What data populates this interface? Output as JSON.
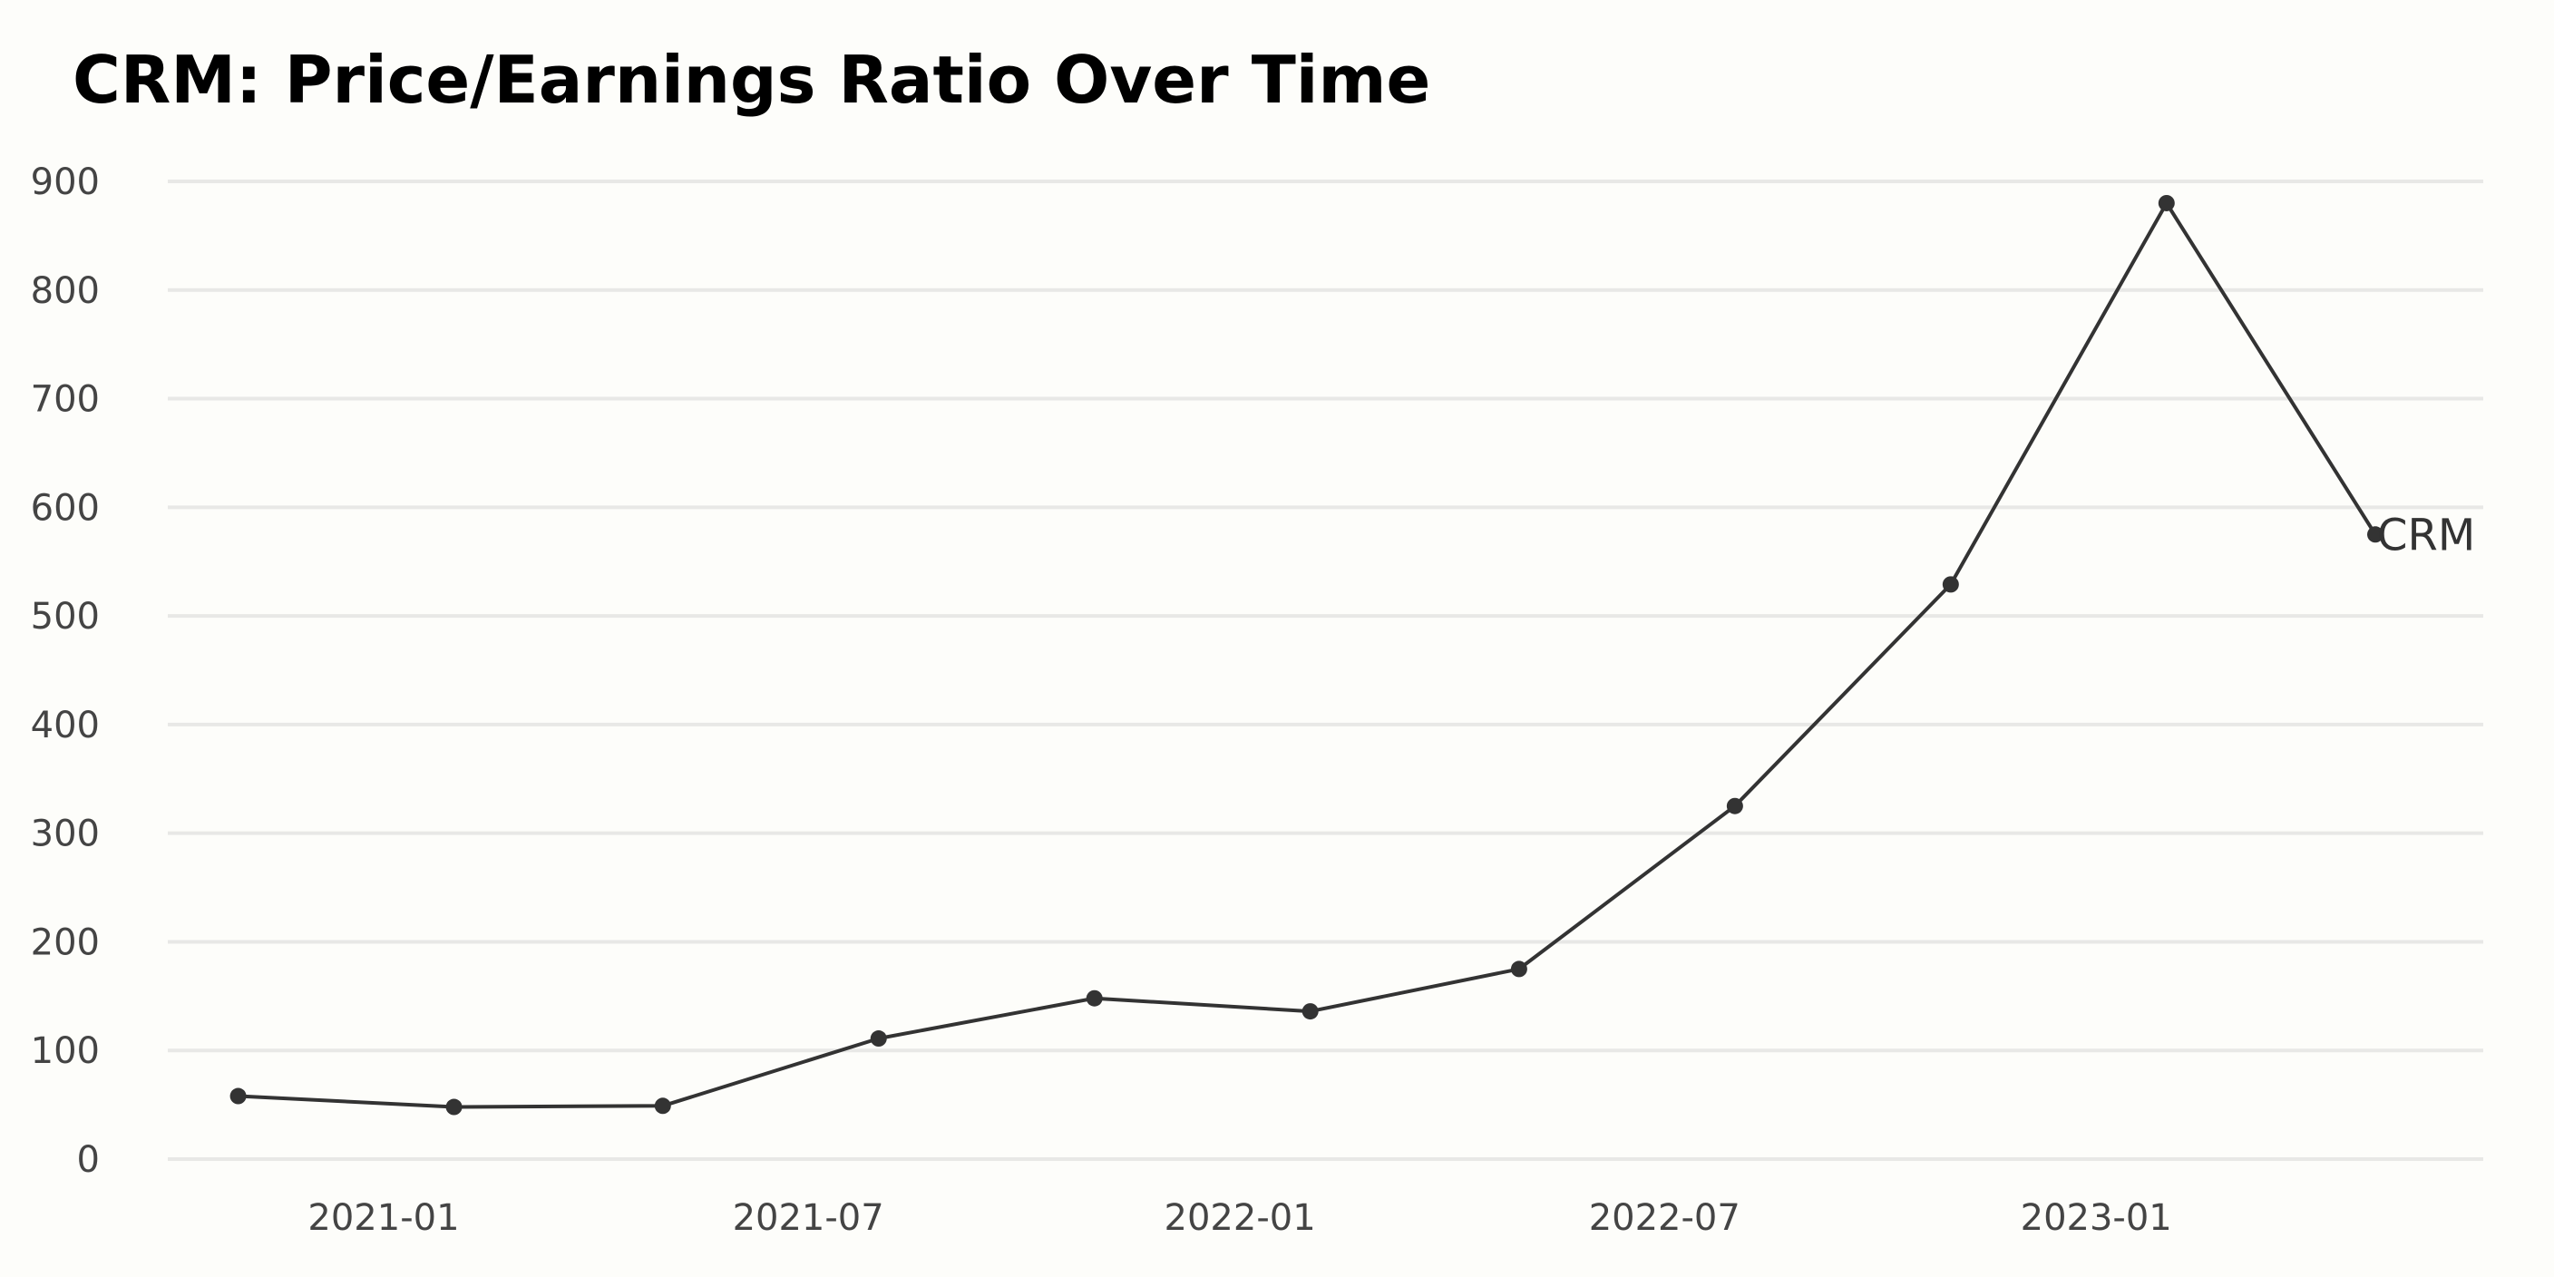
{
  "chart_data": {
    "type": "line",
    "title": "CRM: Price/Earnings Ratio Over Time",
    "xlabel": "",
    "ylabel": "",
    "x_axis": {
      "type": "date",
      "range": [
        "2020-10-01",
        "2023-06-15"
      ],
      "ticks": [
        "2021-01-01",
        "2021-07-01",
        "2022-01-01",
        "2022-07-01",
        "2023-01-01"
      ],
      "tick_labels": [
        "2021-01",
        "2021-07",
        "2022-01",
        "2022-07",
        "2023-01"
      ]
    },
    "y_axis": {
      "range": [
        0,
        900
      ],
      "ticks": [
        0,
        100,
        200,
        300,
        400,
        500,
        600,
        700,
        800,
        900
      ],
      "tick_labels": [
        "0",
        "100",
        "200",
        "300",
        "400",
        "500",
        "600",
        "700",
        "800",
        "900"
      ]
    },
    "grid": "horizontal",
    "legend": "none",
    "colors": {
      "background": "#fdfdfa",
      "grid": "#e8e8e6",
      "line": "#333333",
      "tick_text": "#444444"
    },
    "series": [
      {
        "name": "CRM",
        "x": [
          "2020-10-31",
          "2021-01-31",
          "2021-04-30",
          "2021-07-31",
          "2021-10-31",
          "2022-01-31",
          "2022-04-30",
          "2022-07-31",
          "2022-10-31",
          "2023-01-31",
          "2023-04-30"
        ],
        "values": [
          58,
          48,
          49,
          111,
          148,
          136,
          175,
          325,
          529,
          880,
          575
        ]
      }
    ]
  }
}
